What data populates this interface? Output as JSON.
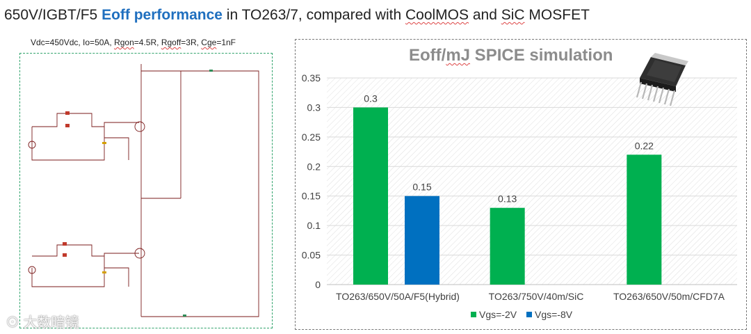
{
  "header": {
    "title_pre": "650V/IGBT/F5 ",
    "title_highlight": "Eoff performance",
    "title_mid": " in TO263/7, compared with ",
    "title_coolmos": "CoolMOS",
    "title_and": " and ",
    "title_sic": "SiC",
    "title_post": " MOSFET"
  },
  "circuit": {
    "caption_pre": "Vdc=450Vdc, Io=50A, ",
    "caption_rgon": "Rgon",
    "caption_mid": "=4.5R, ",
    "caption_rgoff": "Rgoff",
    "caption_mid2": "=3R, ",
    "caption_cge": "Cge",
    "caption_post": "=1nF"
  },
  "package_image": {
    "icon": "to263-package-icon",
    "color": "#3a3a3a"
  },
  "watermark": {
    "text": "大数暗镜"
  },
  "chart_data": {
    "type": "bar",
    "title_pre": "Eoff/",
    "title_unit": "mJ",
    "title_post": " SPICE simulation",
    "categories": [
      "TO263/650V/50A/F5(Hybrid)",
      "TO263/750V/40m/SiC",
      "TO263/650V/50m/CFD7A"
    ],
    "series": [
      {
        "name": "Vgs=-2V",
        "color": "#00b050",
        "values": [
          0.3,
          0.13,
          0.22
        ]
      },
      {
        "name": "Vgs=-8V",
        "color": "#0070c0",
        "values": [
          0.15,
          null,
          null
        ]
      }
    ],
    "data_labels": [
      [
        "0.3",
        "0.13",
        "0.22"
      ],
      [
        "0.15",
        "",
        ""
      ]
    ],
    "yticks": [
      "0",
      "0.05",
      "0.1",
      "0.15",
      "0.2",
      "0.25",
      "0.3",
      "0.35"
    ],
    "ylim": [
      0,
      0.35
    ],
    "xlabel": "",
    "ylabel": "",
    "grid": true,
    "legend": "bottom-center"
  }
}
